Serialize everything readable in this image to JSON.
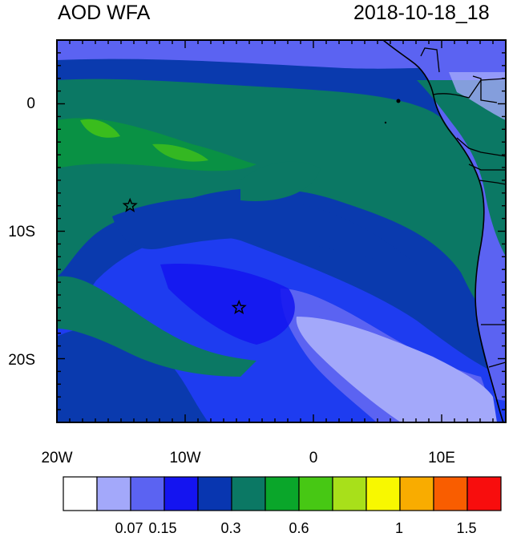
{
  "header": {
    "title_left": "AOD WFA",
    "title_right": "2018-10-18_18"
  },
  "map": {
    "lon_range": [
      -20,
      15
    ],
    "lat_range": [
      -25,
      5
    ],
    "y_ticks": [
      "0",
      "10S",
      "20S"
    ],
    "x_ticks": [
      "20W",
      "10W",
      "0",
      "10E"
    ],
    "markers": [
      {
        "name": "star-marker-1",
        "lon": -14.3,
        "lat": -8.0
      },
      {
        "name": "star-marker-2",
        "lon": -5.8,
        "lat": -16.0
      }
    ]
  },
  "colorbar": {
    "colors": [
      "#ffffff",
      "#a3a8fa",
      "#5b63f2",
      "#1414f0",
      "#0836b0",
      "#0b7864",
      "#0aa62a",
      "#47c814",
      "#a8e01a",
      "#f8f800",
      "#f9ac00",
      "#f95d00",
      "#f80d0d"
    ],
    "labels": [
      "0.07",
      "0.15",
      "0.3",
      "0.6",
      "1",
      "1.5"
    ]
  },
  "colors": {
    "bg_ocean": "#1e3cf0",
    "dark_blue": "#0a3aae",
    "teal": "#0b7864",
    "green": "#0aa62a",
    "light_purple": "#a3a8fa",
    "medium_blue": "#5b63f2"
  }
}
